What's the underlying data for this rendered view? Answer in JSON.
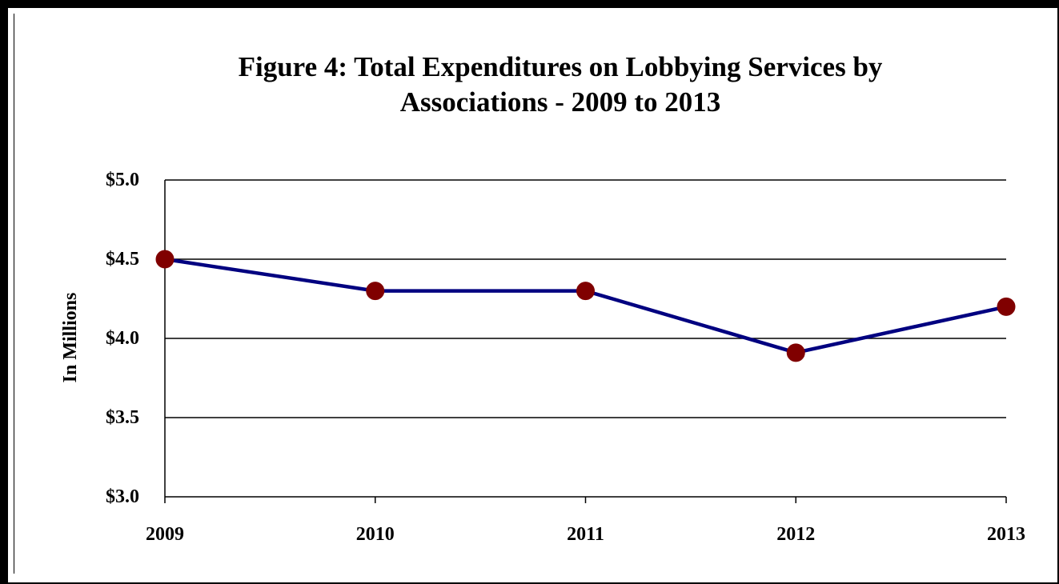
{
  "chart_data": {
    "type": "line",
    "title_lines": [
      "Figure 4:  Total Expenditures on Lobbying Services by",
      "Associations - 2009 to 2013"
    ],
    "title": "Figure 4:  Total Expenditures on Lobbying Services by Associations - 2009 to 2013",
    "xlabel": "",
    "ylabel": "In Millions",
    "categories": [
      "2009",
      "2010",
      "2011",
      "2012",
      "2013"
    ],
    "series": [
      {
        "values": [
          4.5,
          4.3,
          4.3,
          3.91,
          4.2
        ],
        "line_color": "#000080",
        "marker_color": "#800000"
      }
    ],
    "ylim": [
      3.0,
      5.0
    ],
    "yticks": [
      3.0,
      3.5,
      4.0,
      4.5,
      5.0
    ],
    "ytick_labels": [
      "$3.0",
      "$3.5",
      "$4.0",
      "$4.5",
      "$5.0"
    ],
    "grid": true,
    "legend": "none"
  }
}
